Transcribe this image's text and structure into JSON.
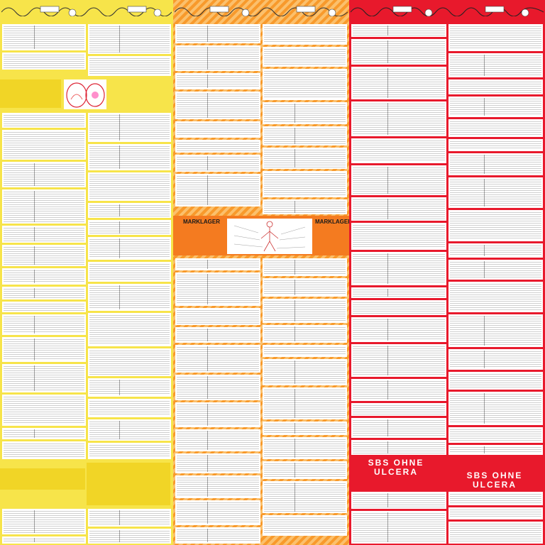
{
  "orange_section": {
    "left_title": "MARKLAGER",
    "right_title": "MARKLAGER"
  },
  "red_section": {
    "banner_left": {
      "title": "SBS OHNE ULCERA"
    },
    "banner_right": {
      "title": "SBS OHNE ULCERA"
    }
  },
  "colors": {
    "yellow": "#f7e44a",
    "yellow_border": "#f1d526",
    "orange_stripe_a": "#f89a2c",
    "orange_stripe_b": "#fbc06c",
    "orange_solid": "#f47b20",
    "red": "#e8192c"
  }
}
